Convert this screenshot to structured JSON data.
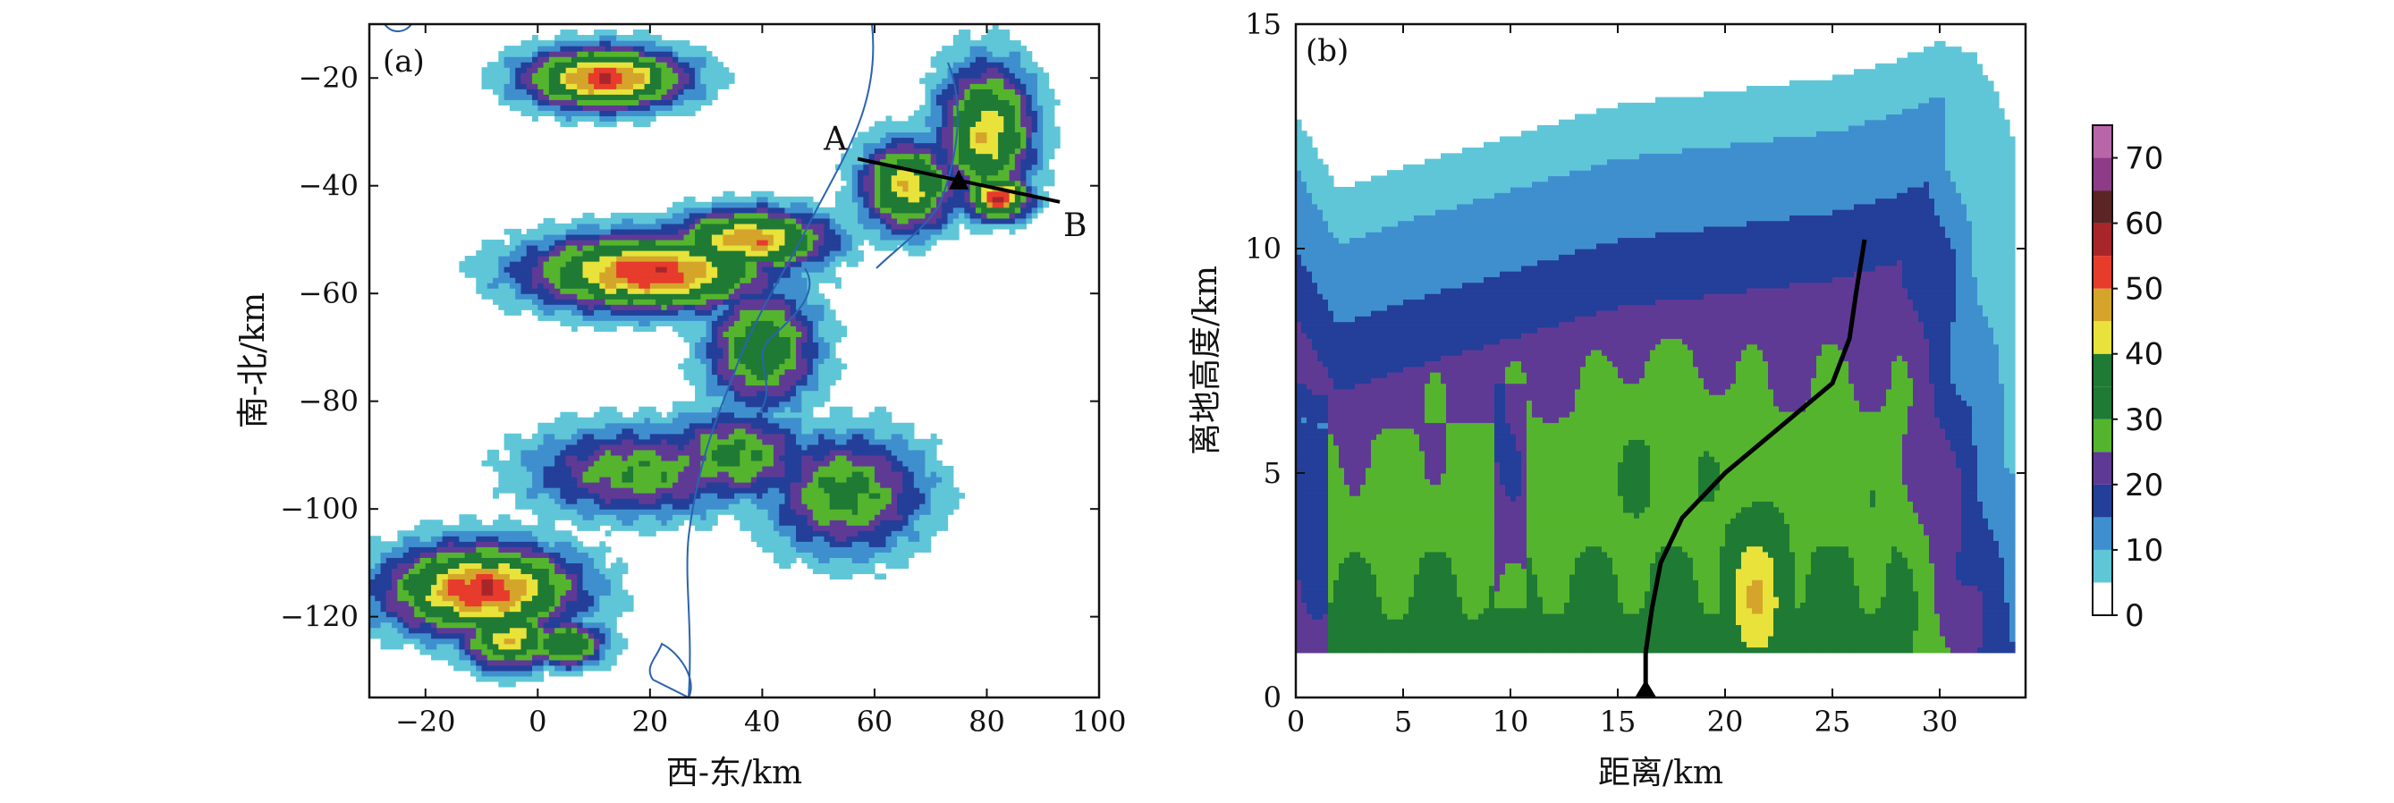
{
  "colors": {
    "levels": [
      {
        "value": 0,
        "color": "#ffffff"
      },
      {
        "value": 5,
        "color": "#5fc6d8"
      },
      {
        "value": 10,
        "color": "#3f8fce"
      },
      {
        "value": 15,
        "color": "#233f99"
      },
      {
        "value": 20,
        "color": "#5f3a95"
      },
      {
        "value": 25,
        "color": "#55b42d"
      },
      {
        "value": 30,
        "color": "#1f7a34"
      },
      {
        "value": 35,
        "color": "#1f7a34"
      },
      {
        "value": 40,
        "color": "#e8e23a"
      },
      {
        "value": 45,
        "color": "#d4a52a"
      },
      {
        "value": 50,
        "color": "#e73b2c"
      },
      {
        "value": 55,
        "color": "#a8262a"
      },
      {
        "value": 60,
        "color": "#5c2525"
      },
      {
        "value": 65,
        "color": "#8e3c88"
      },
      {
        "value": 70,
        "color": "#b866a8"
      },
      {
        "value": 75,
        "color": "#dfa6cb"
      }
    ],
    "coast": "#2a63b0"
  },
  "chart_data": [
    {
      "type": "heatmap",
      "panel_tag": "(a)",
      "xlabel": "西-东/km",
      "ylabel": "南-北/km",
      "xlim": [
        -30,
        100
      ],
      "ylim": [
        -135,
        -10
      ],
      "xticks": [
        -20,
        0,
        20,
        40,
        60,
        80,
        100
      ],
      "yticks": [
        -20,
        -40,
        -60,
        -80,
        -100,
        -120
      ],
      "xtick_labels": [
        "−20",
        "0",
        "20",
        "40",
        "60",
        "80",
        "100"
      ],
      "ytick_labels": [
        "−20",
        "−40",
        "−60",
        "−80",
        "−100",
        "−120"
      ],
      "cross_section": {
        "start_label": "A",
        "end_label": "B",
        "start": [
          57,
          -35
        ],
        "end": [
          93,
          -43
        ],
        "marker": [
          75,
          -39
        ]
      },
      "echo_cells": [
        {
          "x": 12,
          "y": -20,
          "sx": 10,
          "sy": 4,
          "max": 55
        },
        {
          "x": 38,
          "y": -50,
          "sx": 10,
          "sy": 4,
          "max": 50
        },
        {
          "x": 20,
          "y": -56,
          "sx": 15,
          "sy": 5,
          "max": 55
        },
        {
          "x": 40,
          "y": -70,
          "sx": 7,
          "sy": 8,
          "max": 38
        },
        {
          "x": 35,
          "y": -90,
          "sx": 10,
          "sy": 6,
          "max": 32
        },
        {
          "x": 18,
          "y": -93,
          "sx": 14,
          "sy": 6,
          "max": 30
        },
        {
          "x": 55,
          "y": -97,
          "sx": 10,
          "sy": 8,
          "max": 33
        },
        {
          "x": 80,
          "y": -30,
          "sx": 6,
          "sy": 9,
          "max": 45
        },
        {
          "x": 66,
          "y": -40,
          "sx": 6,
          "sy": 6,
          "max": 45
        },
        {
          "x": 82,
          "y": -42,
          "sx": 4,
          "sy": 3,
          "max": 55
        },
        {
          "x": -10,
          "y": -115,
          "sx": 12,
          "sy": 6,
          "max": 55
        },
        {
          "x": -5,
          "y": -124,
          "sx": 6,
          "sy": 4,
          "max": 45
        },
        {
          "x": 5,
          "y": -125,
          "sx": 5,
          "sy": 3,
          "max": 40
        }
      ]
    },
    {
      "type": "heatmap",
      "panel_tag": "(b)",
      "xlabel": "距离/km",
      "ylabel": "离地高度/km",
      "xlim": [
        0,
        34
      ],
      "ylim": [
        0,
        15
      ],
      "xticks": [
        0,
        5,
        10,
        15,
        20,
        25,
        30
      ],
      "yticks": [
        0,
        5,
        10,
        15
      ],
      "xtick_labels": [
        "0",
        "5",
        "10",
        "15",
        "20",
        "25",
        "30"
      ],
      "ytick_labels": [
        "0",
        "5",
        "10",
        "15"
      ],
      "data_bottom_km": 1,
      "echo_top_km": [
        [
          0,
          13
        ],
        [
          2,
          11.3
        ],
        [
          5,
          11.8
        ],
        [
          10,
          12.5
        ],
        [
          15,
          13.2
        ],
        [
          20,
          13.5
        ],
        [
          25,
          13.8
        ],
        [
          28,
          14.2
        ],
        [
          30,
          14.6
        ],
        [
          32,
          14.3
        ],
        [
          33,
          13.0
        ],
        [
          34,
          11.5
        ]
      ],
      "track": [
        [
          16.3,
          0
        ],
        [
          16.3,
          1
        ],
        [
          16.6,
          2
        ],
        [
          17,
          3
        ],
        [
          18,
          4
        ],
        [
          20,
          5
        ],
        [
          23,
          6.2
        ],
        [
          25,
          7
        ],
        [
          25.8,
          8
        ],
        [
          26.1,
          9
        ],
        [
          26.5,
          10.2
        ]
      ],
      "marker": [
        16.3,
        0
      ]
    }
  ],
  "colorbar": {
    "ticks": [
      0,
      10,
      20,
      30,
      40,
      50,
      60,
      70
    ],
    "min": 0,
    "max": 75
  }
}
